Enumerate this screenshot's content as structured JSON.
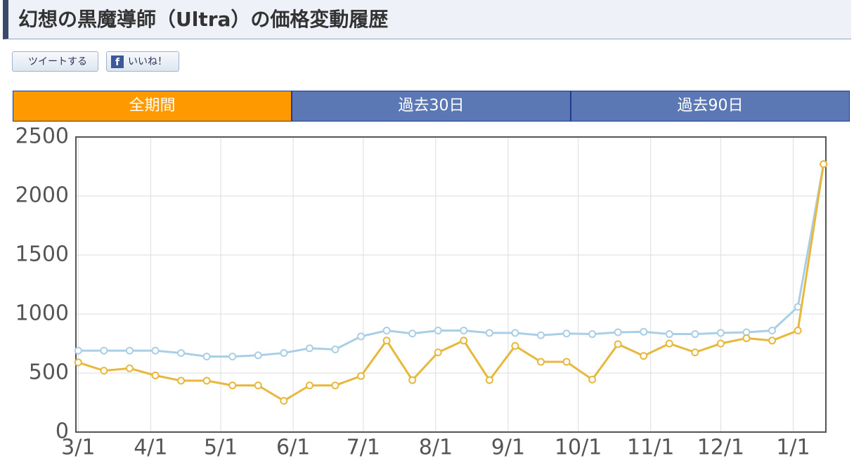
{
  "header": {
    "title": "幻想の黒魔導師（Ultra）の価格変動履歴"
  },
  "share": {
    "tweet": "ツイートする",
    "like": "いいね！"
  },
  "tabs": [
    "全期間",
    "過去30日",
    "過去90日"
  ],
  "chart_data": {
    "type": "line",
    "x": [
      0,
      11,
      22,
      33,
      44,
      55,
      66,
      77,
      88,
      99,
      110,
      121,
      132,
      143,
      154,
      165,
      176,
      187,
      198,
      209,
      220,
      231,
      242,
      253,
      264,
      275,
      286,
      297,
      308,
      319
    ],
    "series": [
      {
        "color": "#a9cfe6",
        "values": [
          690,
          690,
          690,
          690,
          670,
          640,
          640,
          650,
          670,
          710,
          700,
          810,
          860,
          835,
          860,
          860,
          840,
          840,
          820,
          835,
          830,
          845,
          850,
          830,
          830,
          840,
          845,
          860,
          1060,
          2270
        ]
      },
      {
        "color": "#e8b83c",
        "values": [
          590,
          520,
          540,
          480,
          435,
          435,
          395,
          395,
          265,
          395,
          395,
          475,
          775,
          440,
          675,
          775,
          440,
          730,
          595,
          595,
          445,
          745,
          645,
          750,
          675,
          750,
          795,
          775,
          860,
          2270
        ]
      }
    ],
    "xlim": [
      -1,
      320
    ],
    "xticks": [
      {
        "value": 0,
        "label": "3/1"
      },
      {
        "value": 31,
        "label": "4/1"
      },
      {
        "value": 61,
        "label": "5/1"
      },
      {
        "value": 92,
        "label": "6/1"
      },
      {
        "value": 122,
        "label": "7/1"
      },
      {
        "value": 153,
        "label": "8/1"
      },
      {
        "value": 184,
        "label": "9/1"
      },
      {
        "value": 214,
        "label": "10/1"
      },
      {
        "value": 245,
        "label": "11/1"
      },
      {
        "value": 275,
        "label": "12/1"
      },
      {
        "value": 306,
        "label": "1/1"
      }
    ],
    "ylim": [
      0,
      2500
    ],
    "yticks": [
      0,
      500,
      1000,
      1500,
      2000,
      2500
    ],
    "grid": true
  }
}
